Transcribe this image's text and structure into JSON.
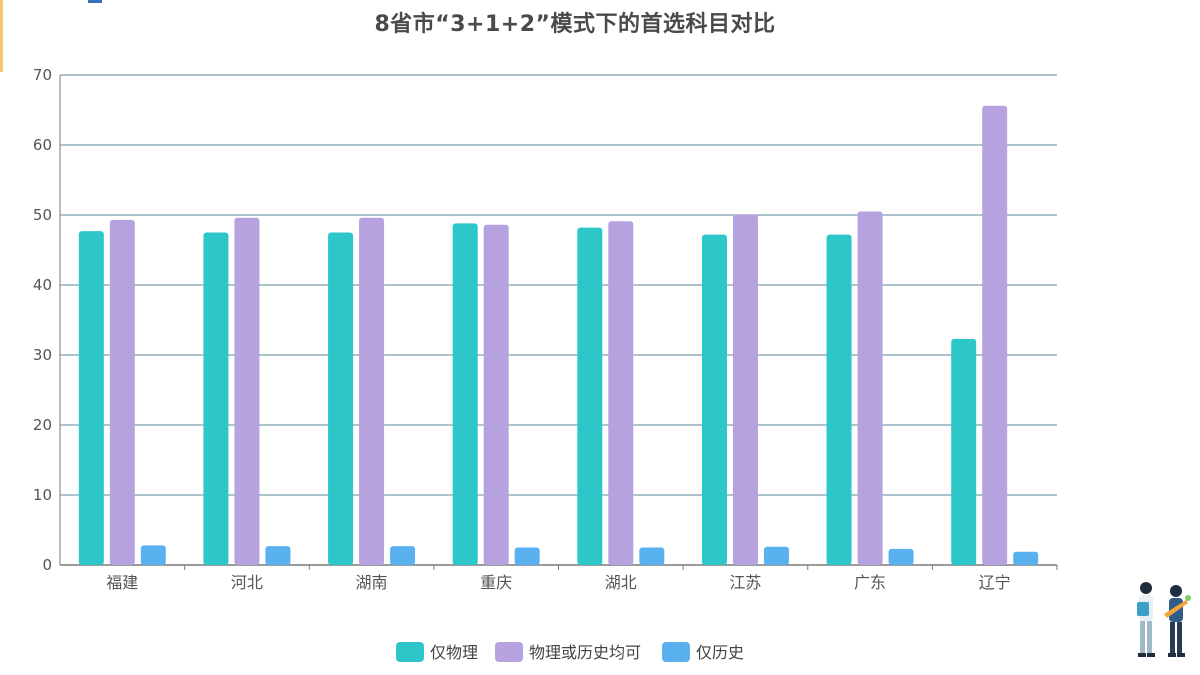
{
  "chart_data": {
    "type": "bar",
    "title": "8省市“3+1+2”模式下的首选科目对比",
    "categories": [
      "福建",
      "河北",
      "湖南",
      "重庆",
      "湖北",
      "江苏",
      "广东",
      "辽宁"
    ],
    "series": [
      {
        "name": "仅物理",
        "color": "#2ec7c9",
        "values": [
          47.7,
          47.5,
          47.5,
          48.8,
          48.2,
          47.2,
          47.2,
          32.3
        ]
      },
      {
        "name": "物理或历史均可",
        "color": "#b6a2de",
        "values": [
          49.3,
          49.6,
          49.6,
          48.6,
          49.1,
          50.1,
          50.5,
          65.6
        ]
      },
      {
        "name": "仅历史",
        "color": "#5ab1ef",
        "values": [
          2.8,
          2.7,
          2.7,
          2.5,
          2.5,
          2.6,
          2.3,
          1.9
        ]
      }
    ],
    "ylim": [
      0,
      70
    ],
    "yticks": [
      0,
      10,
      20,
      30,
      40,
      50,
      60,
      70
    ],
    "xlabel": "",
    "ylabel": "",
    "grid": true,
    "legend_position": "bottom-center",
    "colors": {
      "grid": "#5b8a9e",
      "axis": "#7a7a7a",
      "tick_text": "#555555"
    }
  },
  "decoration": {
    "icon": "people-illustration-icon"
  }
}
